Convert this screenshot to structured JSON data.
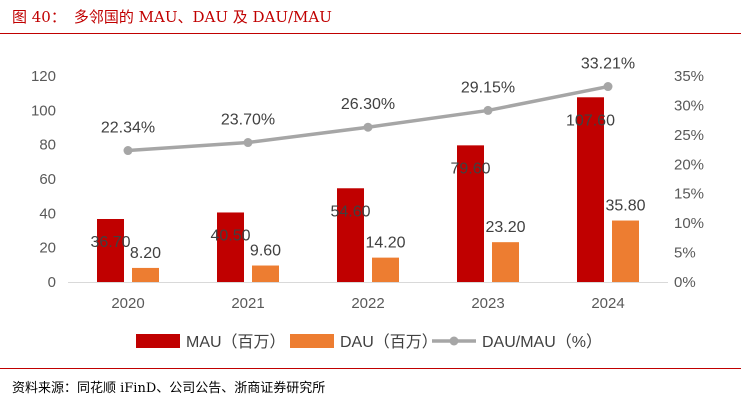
{
  "figure": {
    "label": "图 40：",
    "title": "多邻国的 MAU、DAU 及 DAU/MAU",
    "source": "资料来源：同花顺 iFinD、公司公告、浙商证券研究所"
  },
  "colors": {
    "accent": "#c00000",
    "mau": "#c00000",
    "dau": "#ed7d31",
    "ratio": "#a6a6a6",
    "axis_text": "#595959",
    "label_text": "#404040"
  },
  "chart_data": {
    "type": "bar",
    "categories": [
      "2020",
      "2021",
      "2022",
      "2023",
      "2024"
    ],
    "series": [
      {
        "name": "MAU（百万）",
        "kind": "bar",
        "axis": "left",
        "values": [
          36.7,
          40.5,
          54.6,
          79.6,
          107.6
        ],
        "labels": [
          "36.70",
          "40.50",
          "54.60",
          "79.60",
          "107.60"
        ]
      },
      {
        "name": "DAU（百万）",
        "kind": "bar",
        "axis": "left",
        "values": [
          8.2,
          9.6,
          14.2,
          23.2,
          35.8
        ],
        "labels": [
          "8.20",
          "9.60",
          "14.20",
          "23.20",
          "35.80"
        ]
      },
      {
        "name": "DAU/MAU（%）",
        "kind": "line",
        "axis": "right",
        "values": [
          22.34,
          23.7,
          26.3,
          29.15,
          33.21
        ],
        "labels": [
          "22.34%",
          "23.70%",
          "26.30%",
          "29.15%",
          "33.21%"
        ]
      }
    ],
    "y_left": {
      "min": 0,
      "max": 120,
      "ticks": [
        "0",
        "20",
        "40",
        "60",
        "80",
        "100",
        "120"
      ]
    },
    "y_right": {
      "min": 0,
      "max": 35,
      "ticks": [
        "0%",
        "5%",
        "10%",
        "15%",
        "20%",
        "25%",
        "30%",
        "35%"
      ]
    },
    "grid": false,
    "legend_position": "bottom"
  }
}
